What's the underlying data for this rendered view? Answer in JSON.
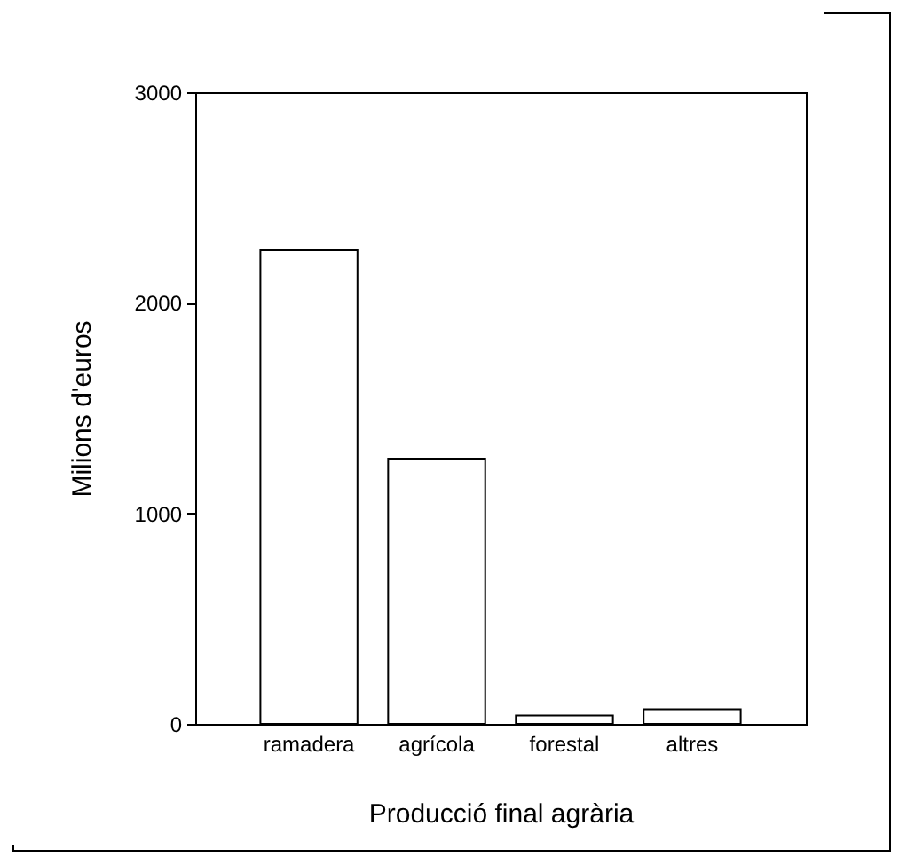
{
  "chart_data": {
    "type": "bar",
    "xlabel": "Producció final agrària",
    "ylabel": "Milions d'euros",
    "categories": [
      "ramadera",
      "agrícola",
      "forestal",
      "altres"
    ],
    "values": [
      2250,
      1260,
      40,
      70
    ],
    "color": "#ffffff",
    "ylim": [
      0,
      3000
    ],
    "yticks": [
      0,
      1000,
      2000,
      3000
    ],
    "grid": false
  }
}
